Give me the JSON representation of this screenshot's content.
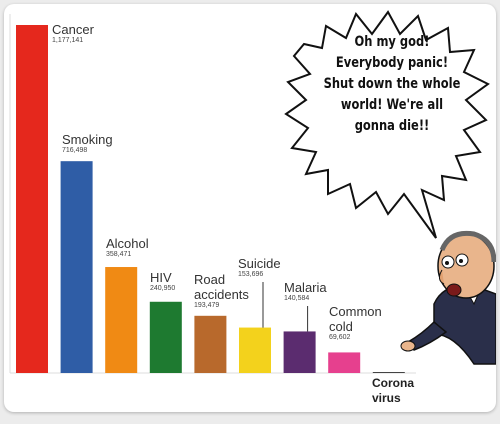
{
  "chart_data": {
    "type": "bar",
    "categories": [
      "Cancer",
      "Smoking",
      "Alcohol",
      "HIV",
      "Road accidents",
      "Suicide",
      "Malaria",
      "Common cold",
      "Corona virus"
    ],
    "values": [
      1177141,
      716498,
      358471,
      240950,
      193479,
      153696,
      140584,
      69602,
      3000
    ],
    "value_labels": [
      "1,177,141",
      "716,498",
      "358,471",
      "240,950",
      "193,479",
      "153,696",
      "140,584",
      "69,602",
      null
    ],
    "colors": [
      "#e5281d",
      "#2f5da6",
      "#f08a14",
      "#1e7a30",
      "#b8692c",
      "#f3d21c",
      "#5b2c6f",
      "#e6408e",
      "#444444"
    ],
    "annotation": "Oh my god! Everybody panic! Shut down the whole world! We're all gonna die!!"
  }
}
